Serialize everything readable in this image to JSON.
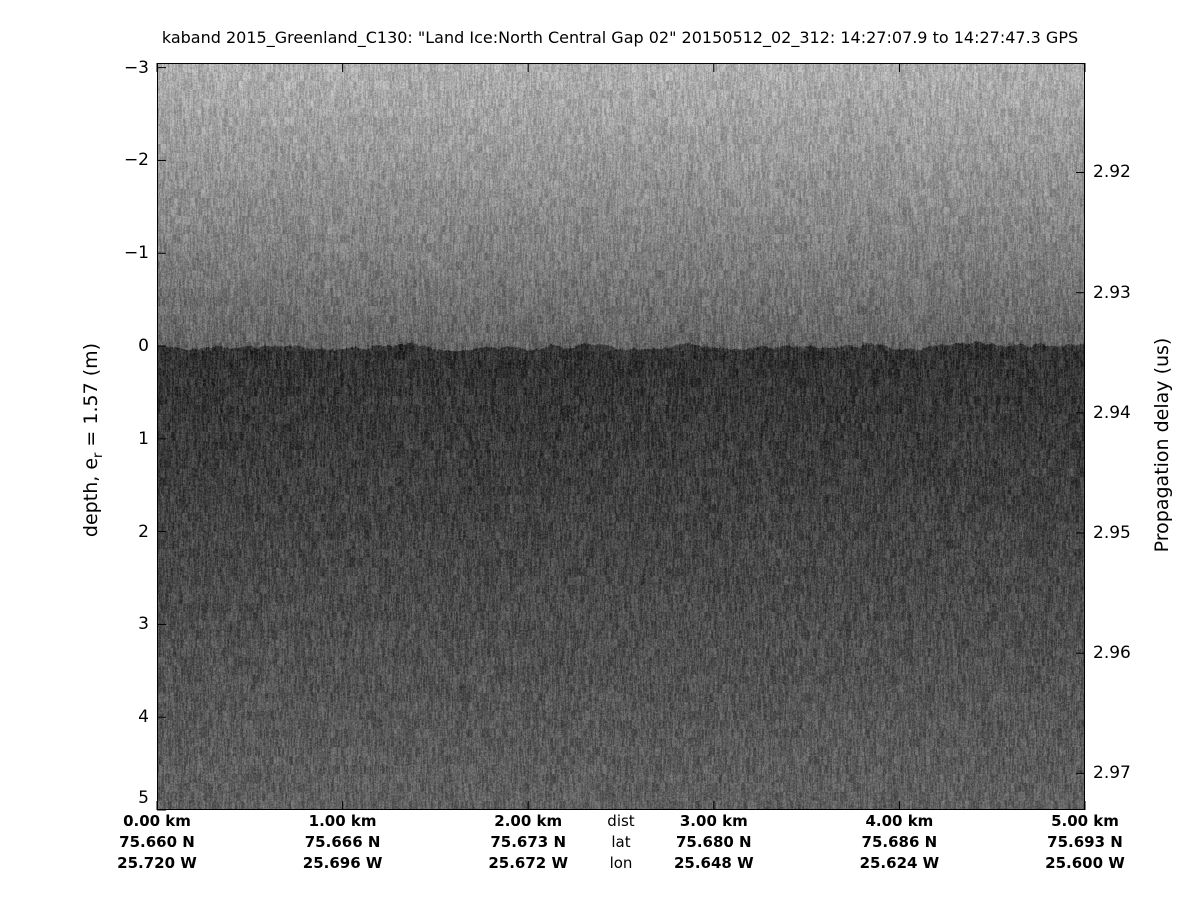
{
  "chart_data": {
    "type": "heatmap",
    "title": "kaband 2015_Greenland_C130: \"Land Ice:North Central Gap 02\"  20150512_02_312: 14:27:07.9 to 14:27:47.3 GPS",
    "ylabel_left": "depth, e",
    "ylabel_left_sub": "r",
    "ylabel_left_tail": " = 1.57 (m)",
    "ylabel_right": "Propagation delay (us)",
    "colormap": "gray",
    "ylim_left": [
      -3,
      5
    ],
    "yticks_left": [
      "-3",
      "-2",
      "-1",
      "0",
      "1",
      "2",
      "3",
      "4",
      "5"
    ],
    "yticks_right": [
      "2.92",
      "2.93",
      "2.94",
      "2.95",
      "2.96",
      "2.97"
    ],
    "surface_depth_m": 0,
    "x_axis": {
      "row_labels": [
        "dist",
        "lat",
        "lon"
      ],
      "ticks": [
        {
          "dist": "0.00 km",
          "lat": "75.660 N",
          "lon": "25.720 W"
        },
        {
          "dist": "1.00 km",
          "lat": "75.666 N",
          "lon": "25.696 W"
        },
        {
          "dist": "2.00 km",
          "lat": "75.673 N",
          "lon": "25.672 W"
        },
        {
          "dist": "3.00 km",
          "lat": "75.680 N",
          "lon": "25.648 W"
        },
        {
          "dist": "4.00 km",
          "lat": "75.686 N",
          "lon": "25.624 W"
        },
        {
          "dist": "5.00 km",
          "lat": "75.693 N",
          "lon": "25.600 W"
        }
      ]
    }
  }
}
